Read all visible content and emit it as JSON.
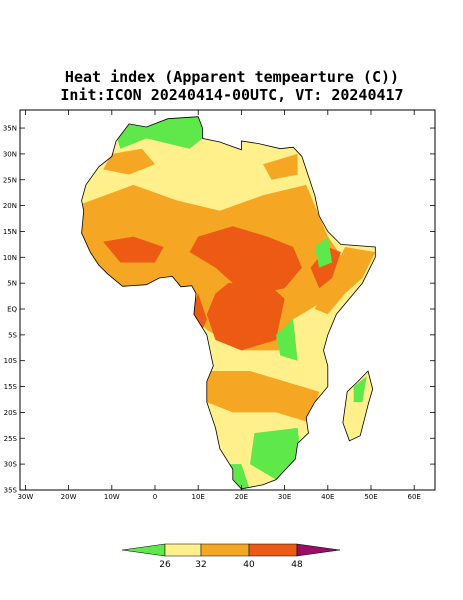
{
  "map": {
    "title": "Heat index (Apparent tempearture (C))",
    "subtitle": "Init:ICON 20240414-00UTC, VT: 20240417",
    "lat_labels": [
      "35N",
      "30N",
      "25N",
      "20N",
      "15N",
      "10N",
      "5N",
      "EQ",
      "5S",
      "10S",
      "15S",
      "20S",
      "25S",
      "30S",
      "35S"
    ],
    "lon_labels": [
      "30W",
      "20W",
      "10W",
      "0",
      "10E",
      "20E",
      "30E",
      "40E",
      "50E",
      "60E"
    ],
    "colorbar": {
      "levels": [
        26,
        32,
        40,
        48
      ],
      "colors": [
        "#5ee84a",
        "#fff08c",
        "#f5a623",
        "#ec5a14",
        "#9c0a6a"
      ]
    }
  }
}
